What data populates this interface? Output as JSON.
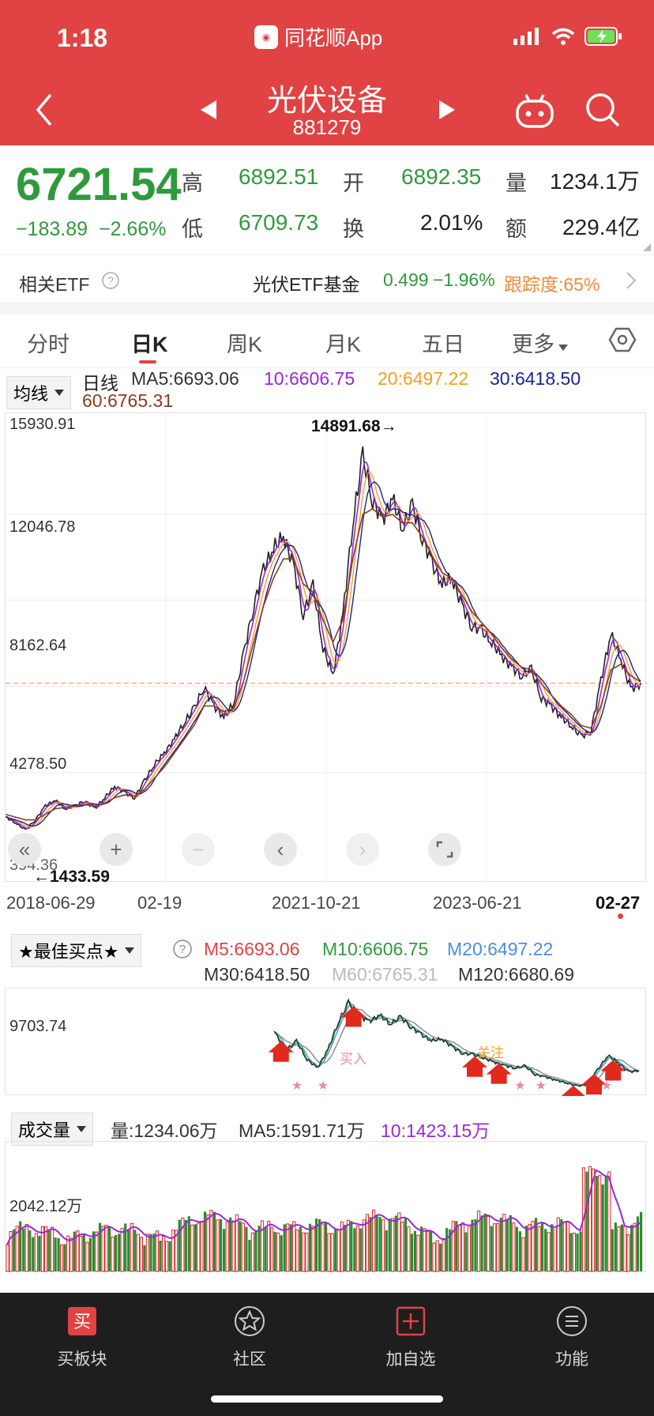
{
  "status_bar": {
    "time": "1:18",
    "app": "同花顺App"
  },
  "header": {
    "title": "光伏设备",
    "code": "881279"
  },
  "quote": {
    "price": "6721.54",
    "change": "−183.89",
    "change_pct": "−2.66%",
    "high_label": "高",
    "high": "6892.51",
    "low_label": "低",
    "low": "6709.73",
    "open_label": "开",
    "open": "6892.35",
    "turnover_label": "换",
    "turnover": "2.01%",
    "volume_label": "量",
    "volume": "1234.1万",
    "amount_label": "额",
    "amount": "229.4亿"
  },
  "etf": {
    "label": "相关ETF",
    "name": "光伏ETF基金",
    "price": "0.499",
    "change": "−1.96%",
    "tracking": "跟踪度:65%"
  },
  "tabs": [
    {
      "label": "分时"
    },
    {
      "label": "日K"
    },
    {
      "label": "周K"
    },
    {
      "label": "月K"
    },
    {
      "label": "五日"
    },
    {
      "label": "更多"
    }
  ],
  "ma_legend": {
    "dropdown": "均线",
    "period": "日线",
    "ma5": "MA5:6693.06",
    "ma10": "10:6606.75",
    "ma20": "20:6497.22",
    "ma30": "30:6418.50",
    "ma60": "60:6765.31"
  },
  "main_chart": {
    "y_labels": [
      "15930.91",
      "12046.78",
      "8162.64",
      "4278.50",
      "394.36"
    ],
    "max_label": "14891.68→",
    "min_label": "←1433.59",
    "x_labels": [
      "2018-06-29",
      "02-19",
      "2021-10-21",
      "2023-06-21",
      "02-27"
    ]
  },
  "buy_panel": {
    "dropdown": "★最佳买点★",
    "m5": "M5:6693.06",
    "m10": "M10:6606.75",
    "m20": "M20:6497.22",
    "m30": "M30:6418.50",
    "m60": "M60:6765.31",
    "m120": "M120:6680.69",
    "y_label": "9703.74",
    "marker_buy": "买入",
    "marker_watch": "关注"
  },
  "volume_panel": {
    "dropdown": "成交量",
    "vol": "量:1234.06万",
    "ma5": "MA5:1591.71万",
    "ma10": "10:1423.15万",
    "y_label": "2042.12万"
  },
  "nav": [
    {
      "label": "买板块",
      "icon": "buy-icon"
    },
    {
      "label": "社区",
      "icon": "community-icon"
    },
    {
      "label": "加自选",
      "icon": "add-icon"
    },
    {
      "label": "功能",
      "icon": "menu-icon"
    }
  ],
  "chart_data": {
    "type": "line",
    "x_range": [
      "2018-06-29",
      "02-27"
    ],
    "y_range": [
      394.36,
      15930.91
    ],
    "series": [
      {
        "name": "日线",
        "values": [
          1900,
          1700,
          1433.59,
          1800,
          2300,
          2500,
          2200,
          2300,
          2500,
          2200,
          2600,
          3000,
          2800,
          2600,
          3200,
          3800,
          4200,
          4700,
          5300,
          5800,
          6600,
          5900,
          5500,
          6000,
          7800,
          9500,
          10800,
          11600,
          12000,
          11000,
          9200,
          10200,
          8000,
          7000,
          9200,
          12500,
          14891.68,
          13300,
          12600,
          13400,
          12300,
          13100,
          12000,
          11000,
          10300,
          10500,
          9500,
          8800,
          8600,
          8200,
          7700,
          7300,
          7000,
          7200,
          6200,
          5900,
          5500,
          5200,
          4800,
          5000,
          6800,
          8500,
          7600,
          6500,
          6721.54
        ]
      },
      {
        "name": "MA60",
        "values": [
          2000,
          1900,
          1800,
          1800,
          2000,
          2200,
          2250,
          2300,
          2350,
          2300,
          2400,
          2600,
          2700,
          2650,
          2900,
          3300,
          3700,
          4200,
          4700,
          5200,
          5900,
          5900,
          5700,
          5800,
          6800,
          8200,
          9500,
          10500,
          11200,
          11200,
          10300,
          10000,
          9000,
          8200,
          9000,
          11200,
          12800,
          13000,
          12700,
          12800,
          12500,
          12500,
          12000,
          11300,
          10700,
          10500,
          9900,
          9300,
          8900,
          8500,
          8000,
          7600,
          7300,
          7200,
          6700,
          6300,
          5900,
          5600,
          5200,
          5100,
          5900,
          7200,
          7400,
          7000,
          6765.31
        ]
      }
    ]
  }
}
